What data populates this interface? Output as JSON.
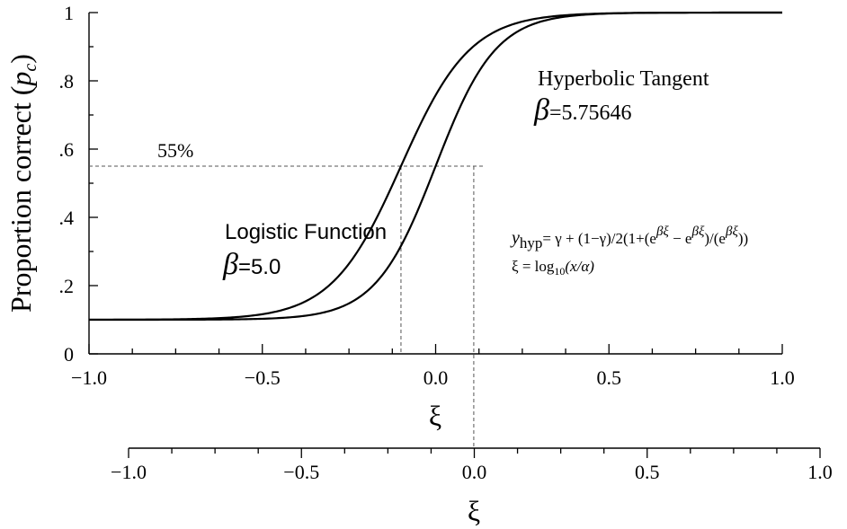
{
  "chart_data": {
    "type": "line",
    "ylabel": "Proportion correct (",
    "ylabel_italic": "p",
    "ylabel_sub": "c",
    "ylabel_close": ")",
    "ylim": [
      0,
      1
    ],
    "yticks": [
      {
        "value": 0,
        "label": "0"
      },
      {
        "value": 0.2,
        "label": ".2"
      },
      {
        "value": 0.4,
        "label": ".4"
      },
      {
        "value": 0.6,
        "label": ".6"
      },
      {
        "value": 0.8,
        "label": ".8"
      },
      {
        "value": 1.0,
        "label": "1"
      }
    ],
    "x_axes": [
      {
        "id": "primary",
        "label": "ξ",
        "xlim": [
          -1.0,
          1.0
        ],
        "ticks": [
          {
            "value": -1.0,
            "label": "−1.0"
          },
          {
            "value": -0.5,
            "label": "−0.5"
          },
          {
            "value": 0.0,
            "label": "0.0"
          },
          {
            "value": 0.5,
            "label": "0.5"
          },
          {
            "value": 1.0,
            "label": "1.0"
          }
        ]
      },
      {
        "id": "secondary",
        "label": "ξ",
        "xlim": [
          -1.0,
          1.0
        ],
        "ticks": [
          {
            "value": -1.0,
            "label": "−1.0"
          },
          {
            "value": -0.5,
            "label": "−0.5"
          },
          {
            "value": 0.0,
            "label": "0.0"
          },
          {
            "value": 0.5,
            "label": "0.5"
          },
          {
            "value": 1.0,
            "label": "1.0"
          }
        ]
      }
    ],
    "gamma": 0.1,
    "series": [
      {
        "name": "Logistic Function",
        "beta_label": "=5.0",
        "beta": 5.0,
        "xi0": -0.1
      },
      {
        "name": "Hyperbolic Tangent",
        "beta_label": "=5.75646",
        "beta": 5.75646,
        "xi0": 0.0
      }
    ],
    "threshold": {
      "value": 0.55,
      "label": "55%",
      "x_logistic": -0.1,
      "x_hyperbolic": 0.11
    },
    "annotations": {
      "beta_symbol": "β",
      "formula_y": "y",
      "formula_y_sub": "hyp",
      "formula_body_1": "= γ + (1−γ)/2(1+(e",
      "formula_exp": "βξ",
      "formula_body_2": " − e",
      "formula_body_3": ")/(e",
      "formula_body_4": "))",
      "xi_def_lhs": "ξ = log",
      "xi_def_sub": "10",
      "xi_def_rhs": "(x/α)"
    },
    "grid": false,
    "legend": "none"
  }
}
